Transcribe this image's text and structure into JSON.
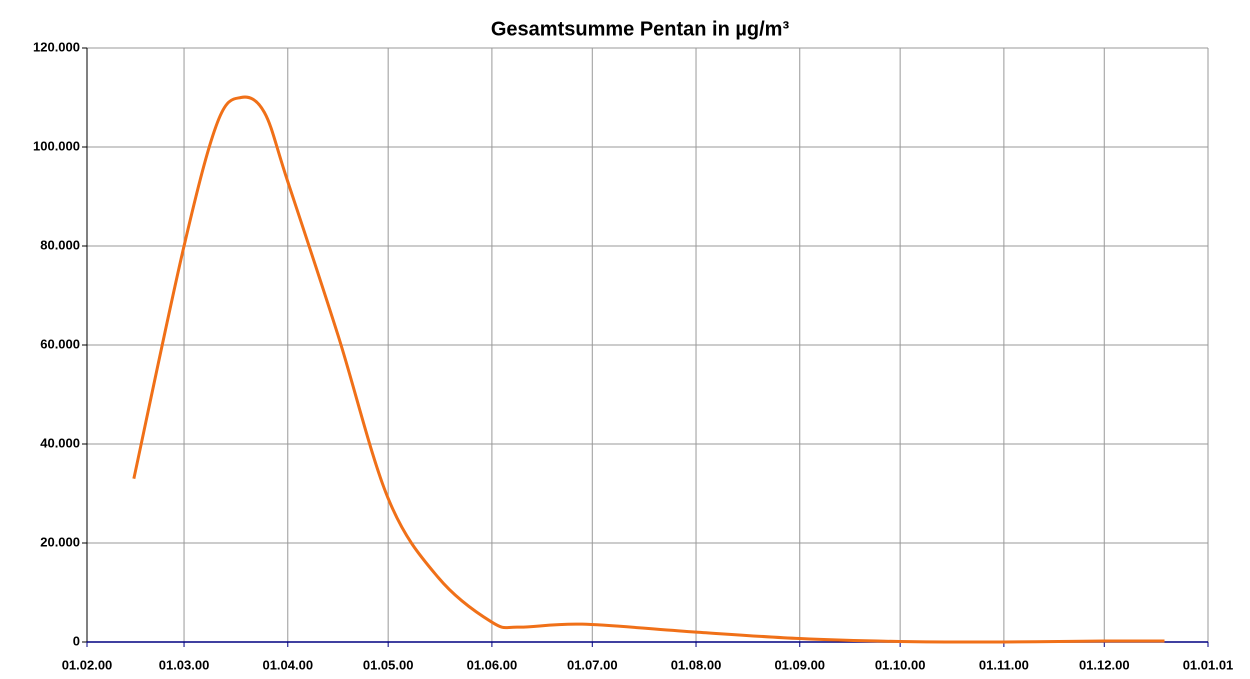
{
  "chart_data": {
    "type": "line",
    "title": "Gesamtsumme Pentan in µg/m³",
    "x": [
      36571,
      36586,
      36596,
      36603,
      36610,
      36617,
      36632,
      36647,
      36662,
      36678,
      36686,
      36705,
      36739,
      36770,
      36800,
      36831,
      36861,
      36879
    ],
    "series": [
      {
        "color": "#f07018",
        "values": [
          33000,
          80000,
          105000,
          110000,
          107000,
          93000,
          62000,
          29000,
          13000,
          4000,
          3000,
          3600,
          2000,
          700,
          100,
          0,
          200,
          200
        ]
      }
    ],
    "xlim": [
      36557,
      36892
    ],
    "xticks": [
      {
        "value": 36557,
        "label": "01.02.00"
      },
      {
        "value": 36586,
        "label": "01.03.00"
      },
      {
        "value": 36617,
        "label": "01.04.00"
      },
      {
        "value": 36647,
        "label": "01.05.00"
      },
      {
        "value": 36678,
        "label": "01.06.00"
      },
      {
        "value": 36708,
        "label": "01.07.00"
      },
      {
        "value": 36739,
        "label": "01.08.00"
      },
      {
        "value": 36770,
        "label": "01.09.00"
      },
      {
        "value": 36800,
        "label": "01.10.00"
      },
      {
        "value": 36831,
        "label": "01.11.00"
      },
      {
        "value": 36861,
        "label": "01.12.00"
      },
      {
        "value": 36892,
        "label": "01.01.01"
      }
    ],
    "ylim": [
      0,
      120000
    ],
    "yticks": [
      0,
      {
        "value": 20000,
        "label": "20.000"
      },
      {
        "value": 40000,
        "label": "40.000"
      },
      {
        "value": 60000,
        "label": "60.000"
      },
      {
        "value": 80000,
        "label": "80.000"
      },
      {
        "value": 100000,
        "label": "100.000"
      },
      {
        "value": 120000,
        "label": "120.000"
      }
    ],
    "grid": true
  }
}
